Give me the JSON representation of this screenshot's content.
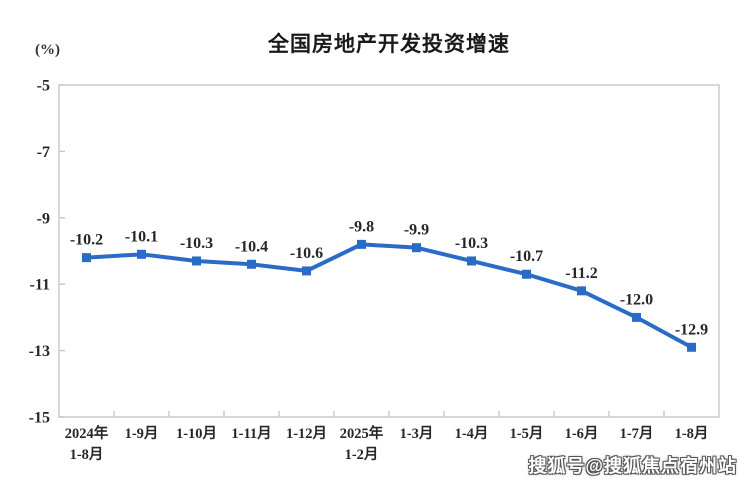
{
  "chart_data": {
    "type": "line",
    "title": "全国房地产开发投资增速",
    "ylabel": "(%)",
    "xlabel": "",
    "categories": [
      "2024年\n1-8月",
      "1-9月",
      "1-10月",
      "1-11月",
      "1-12月",
      "2025年\n1-2月",
      "1-3月",
      "1-4月",
      "1-5月",
      "1-6月",
      "1-7月",
      "1-8月"
    ],
    "values": [
      -10.2,
      -10.1,
      -10.3,
      -10.4,
      -10.6,
      -9.8,
      -9.9,
      -10.3,
      -10.7,
      -11.2,
      -12.0,
      -12.9
    ],
    "data_labels": [
      "-10.2",
      "-10.1",
      "-10.3",
      "-10.4",
      "-10.6",
      "-9.8",
      "-9.9",
      "-10.3",
      "-10.7",
      "-11.2",
      "-12.0",
      "-12.9"
    ],
    "ylim": [
      -15,
      -5
    ],
    "yticks": [
      "-5",
      "-7",
      "-9",
      "-11",
      "-13",
      "-15"
    ],
    "grid": false,
    "legend": "none",
    "line_color": "#2B6BC8",
    "marker": "square",
    "axis_color": "#C6C6C6",
    "text_color": "#262626"
  },
  "watermark": {
    "text": "搜狐号@搜狐焦点宿州站"
  }
}
